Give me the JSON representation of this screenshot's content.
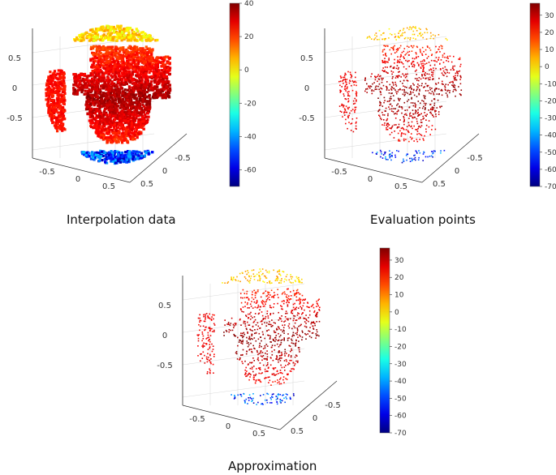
{
  "colors": {
    "land_hot": "#b01010",
    "land_warm": "#e03a1a",
    "land_mild": "#f07a20",
    "ice_blue": "#1f3ed0",
    "ice_cyan": "#34c8e0",
    "arctic_green": "#9ee25a",
    "grid": "#d9d9d9",
    "axis": "#333333"
  },
  "panels": [
    {
      "id": "interpolation",
      "caption": "Interpolation data",
      "rendering": "dense",
      "colorbar": {
        "min": -70,
        "max": 40,
        "ticks": [
          "40",
          "20",
          "0",
          "-20",
          "-40",
          "-60"
        ]
      },
      "z_ticks": [
        "0.5",
        "0",
        "-0.5"
      ],
      "x_ticks": [
        "-0.5",
        "0",
        "0.5"
      ],
      "y_ticks": [
        "-0.5",
        "0",
        "0.5"
      ]
    },
    {
      "id": "evaluation",
      "caption": "Evaluation points",
      "rendering": "sparse",
      "colorbar": {
        "min": -70,
        "max": 37,
        "ticks": [
          "30",
          "20",
          "10",
          "0",
          "-10",
          "-20",
          "-30",
          "-40",
          "-50",
          "-60",
          "-70"
        ]
      },
      "z_ticks": [
        "0.5",
        "0",
        "-0.5"
      ],
      "x_ticks": [
        "-0.5",
        "0",
        "0.5"
      ],
      "y_ticks": [
        "-0.5",
        "0",
        "0.5"
      ]
    },
    {
      "id": "approximation",
      "caption": "Approximation",
      "rendering": "sparse",
      "colorbar": {
        "min": -70,
        "max": 37,
        "ticks": [
          "30",
          "20",
          "10",
          "0",
          "-10",
          "-20",
          "-30",
          "-40",
          "-50",
          "-60",
          "-70"
        ]
      },
      "z_ticks": [
        "0.5",
        "0",
        "-0.5"
      ],
      "x_ticks": [
        "-0.5",
        "0",
        "0.5"
      ],
      "y_ticks": [
        "-0.5",
        "0",
        "0.5"
      ]
    }
  ]
}
